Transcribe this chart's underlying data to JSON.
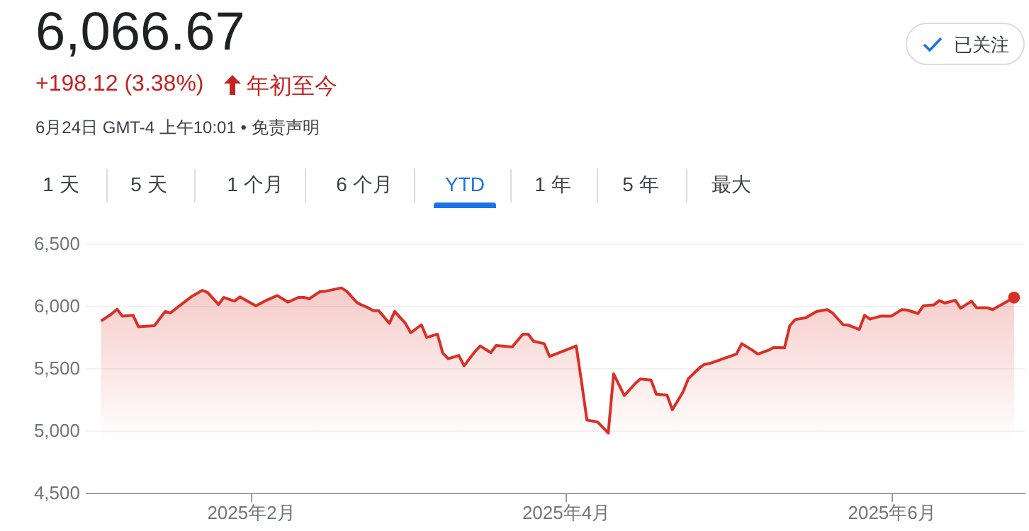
{
  "chart_data": {
    "type": "area",
    "title": "6,066.67",
    "subtitle": "+198.12 (3.38%)",
    "annotations": [
      "年初至今",
      "6月24日 GMT-4 上午10:01 • 免责声明",
      "1 天",
      "5 天",
      "1 个月",
      "6 个月",
      "YTD",
      "1 年",
      "5 年",
      "最大",
      "已关注"
    ],
    "x": [
      "2025-01-04",
      "2025-01-06",
      "2025-01-07",
      "2025-01-08",
      "2025-01-10",
      "2025-01-11",
      "2025-01-14",
      "2025-01-16",
      "2025-01-17",
      "2025-01-19",
      "2025-01-21",
      "2025-01-23",
      "2025-01-24",
      "2025-01-26",
      "2025-01-27",
      "2025-01-29",
      "2025-01-30",
      "2025-02-02",
      "2025-02-04",
      "2025-02-06",
      "2025-02-08",
      "2025-02-10",
      "2025-02-11",
      "2025-02-12",
      "2025-02-14",
      "2025-02-15",
      "2025-02-18",
      "2025-02-19",
      "2025-02-21",
      "2025-02-23",
      "2025-02-24",
      "2025-02-25",
      "2025-02-27",
      "2025-02-28",
      "2025-03-02",
      "2025-03-03",
      "2025-03-05",
      "2025-03-06",
      "2025-03-08",
      "2025-03-09",
      "2025-03-10",
      "2025-03-12",
      "2025-03-13",
      "2025-03-15",
      "2025-03-16",
      "2025-03-18",
      "2025-03-19",
      "2025-03-22",
      "2025-03-24",
      "2025-03-25",
      "2025-03-26",
      "2025-03-28",
      "2025-03-29",
      "2025-04-01",
      "2025-04-03",
      "2025-04-04",
      "2025-04-05",
      "2025-04-07",
      "2025-04-09",
      "2025-04-10",
      "2025-04-12",
      "2025-04-14",
      "2025-04-15",
      "2025-04-17",
      "2025-04-18",
      "2025-04-20",
      "2025-04-21",
      "2025-04-23",
      "2025-04-24",
      "2025-04-26",
      "2025-04-27",
      "2025-04-28",
      "2025-04-30",
      "2025-05-01",
      "2025-05-03",
      "2025-05-04",
      "2025-05-06",
      "2025-05-07",
      "2025-05-09",
      "2025-05-10",
      "2025-05-12",
      "2025-05-13",
      "2025-05-14",
      "2025-05-16",
      "2025-05-18",
      "2025-05-20",
      "2025-05-21",
      "2025-05-23",
      "2025-05-24",
      "2025-05-26",
      "2025-05-27",
      "2025-05-28",
      "2025-05-30",
      "2025-05-31",
      "2025-06-01",
      "2025-06-03",
      "2025-06-04",
      "2025-06-06",
      "2025-06-07",
      "2025-06-09",
      "2025-06-10",
      "2025-06-11",
      "2025-06-13",
      "2025-06-14",
      "2025-06-16",
      "2025-06-17",
      "2025-06-19",
      "2025-06-20",
      "2025-06-24"
    ],
    "series": [
      {
        "color": "#d93025",
        "values": [
          5879,
          5936,
          5973,
          5917,
          5924,
          5833,
          5841,
          5955,
          5943,
          6011,
          6076,
          6125,
          6106,
          6011,
          6068,
          6038,
          6072,
          6000,
          6045,
          6083,
          6030,
          6068,
          6068,
          6057,
          6114,
          6117,
          6144,
          6117,
          6023,
          5985,
          5962,
          5962,
          5860,
          5955,
          5860,
          5784,
          5848,
          5746,
          5773,
          5621,
          5576,
          5602,
          5519,
          5632,
          5678,
          5625,
          5682,
          5670,
          5773,
          5773,
          5716,
          5697,
          5594,
          5644,
          5678,
          5386,
          5083,
          5068,
          4980,
          5454,
          5280,
          5375,
          5413,
          5405,
          5291,
          5284,
          5166,
          5310,
          5416,
          5500,
          5530,
          5538,
          5568,
          5583,
          5613,
          5697,
          5644,
          5613,
          5644,
          5666,
          5663,
          5841,
          5890,
          5905,
          5955,
          5970,
          5943,
          5848,
          5845,
          5810,
          5924,
          5894,
          5917,
          5917,
          5917,
          5970,
          5966,
          5939,
          6000,
          6008,
          6042,
          6023,
          6045,
          5981,
          6038,
          5985,
          5985,
          5970,
          6066.67
        ]
      }
    ],
    "xlim": [
      "2025-01-01",
      "2025-06-26"
    ],
    "xticks": [
      {
        "value": "2025-02-01",
        "label": "2025年2月"
      },
      {
        "value": "2025-04-01",
        "label": "2025年4月"
      },
      {
        "value": "2025-06-01",
        "label": "2025年6月"
      }
    ],
    "ylim": [
      4500,
      6500
    ],
    "yticks": [
      {
        "value": 4500,
        "label": "4,500"
      },
      {
        "value": 5000,
        "label": "5,000"
      },
      {
        "value": 5500,
        "label": "5,500"
      },
      {
        "value": 6000,
        "label": "6,000"
      },
      {
        "value": 6500,
        "label": "6,500"
      }
    ],
    "grid": "y"
  }
}
